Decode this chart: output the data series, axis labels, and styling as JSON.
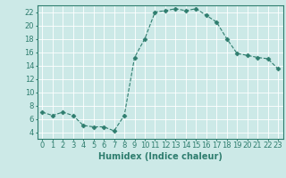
{
  "x": [
    0,
    1,
    2,
    3,
    4,
    5,
    6,
    7,
    8,
    9,
    10,
    11,
    12,
    13,
    14,
    15,
    16,
    17,
    18,
    19,
    20,
    21,
    22,
    23
  ],
  "y": [
    7,
    6.5,
    7,
    6.5,
    5,
    4.8,
    4.8,
    4.2,
    6.5,
    15.2,
    18,
    22,
    22.2,
    22.5,
    22.2,
    22.5,
    21.5,
    20.5,
    18,
    15.8,
    15.5,
    15.2,
    15,
    13.5
  ],
  "line_color": "#2e7d6e",
  "marker": "D",
  "marker_size": 2.5,
  "bg_color": "#cce9e7",
  "grid_color": "#ffffff",
  "xlabel": "Humidex (Indice chaleur)",
  "xlabel_fontsize": 7,
  "tick_fontsize": 6,
  "ylim": [
    3,
    23
  ],
  "xlim": [
    -0.5,
    23.5
  ],
  "yticks": [
    4,
    6,
    8,
    10,
    12,
    14,
    16,
    18,
    20,
    22
  ],
  "xticks": [
    0,
    1,
    2,
    3,
    4,
    5,
    6,
    7,
    8,
    9,
    10,
    11,
    12,
    13,
    14,
    15,
    16,
    17,
    18,
    19,
    20,
    21,
    22,
    23
  ]
}
